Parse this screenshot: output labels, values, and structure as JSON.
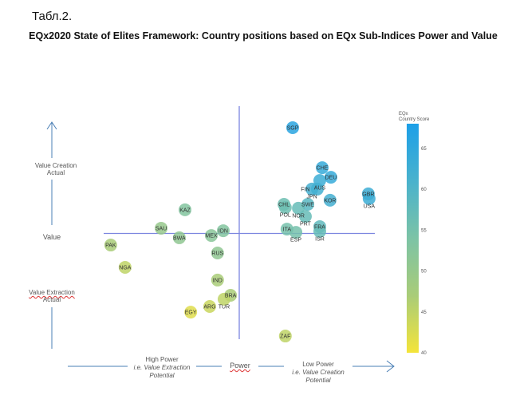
{
  "table_label": "Табл.2.",
  "chart_data": {
    "type": "scatter",
    "title": "EQx2020 State of Elites Framework: Country positions based on EQx Sub-Indices Power and Value",
    "xlabel": "Power",
    "ylabel": "Value",
    "x_left_label": [
      "High Power",
      "i.e. Value Extraction",
      "Potential"
    ],
    "x_right_label": [
      "Low Power",
      "i.e. Value Creation",
      "Potential"
    ],
    "y_top_label": [
      "Value Creation",
      "Actual"
    ],
    "y_bottom_label": [
      "Value Extraction",
      "Actual"
    ],
    "xlim": [
      0,
      100
    ],
    "ylim": [
      0,
      100
    ],
    "crosshair": {
      "x": 50,
      "y": 50
    },
    "colorbar": {
      "title": [
        "EQx",
        "Country Score"
      ],
      "range": [
        40,
        68
      ],
      "ticks": [
        40,
        45,
        50,
        55,
        60,
        65
      ],
      "colors": [
        "#f4e43a",
        "#a9cc78",
        "#7cc3a6",
        "#49b2cd",
        "#1c9fe8"
      ]
    },
    "points": [
      {
        "label": "SGP",
        "x": 69.7,
        "y": 96.5,
        "score": 66
      },
      {
        "label": "CHE",
        "x": 80.6,
        "y": 78.9,
        "score": 64
      },
      {
        "label": "DEU",
        "x": 83.8,
        "y": 74.7,
        "score": 64
      },
      {
        "label": "AUS",
        "x": 79.7,
        "y": 73.3,
        "score": 63
      },
      {
        "label": "JPN",
        "x": 76.8,
        "y": 69.5,
        "score": 62
      },
      {
        "label": "FIN",
        "x": 78.8,
        "y": 69.5,
        "score": 62
      },
      {
        "label": "GBR",
        "x": 97.6,
        "y": 67.4,
        "score": 63
      },
      {
        "label": "USA",
        "x": 97.9,
        "y": 65.3,
        "score": 63
      },
      {
        "label": "KOR",
        "x": 83.5,
        "y": 64.6,
        "score": 62
      },
      {
        "label": "CHL",
        "x": 66.5,
        "y": 62.8,
        "score": 56
      },
      {
        "label": "POL",
        "x": 67.0,
        "y": 61.4,
        "score": 56
      },
      {
        "label": "SWE",
        "x": 75.3,
        "y": 62.8,
        "score": 59
      },
      {
        "label": "NOR",
        "x": 71.8,
        "y": 61.1,
        "score": 57
      },
      {
        "label": "PRT",
        "x": 74.4,
        "y": 57.5,
        "score": 57
      },
      {
        "label": "FRA",
        "x": 79.7,
        "y": 53.0,
        "score": 58
      },
      {
        "label": "ISR",
        "x": 79.7,
        "y": 50.9,
        "score": 57
      },
      {
        "label": "ITA",
        "x": 67.6,
        "y": 51.9,
        "score": 55
      },
      {
        "label": "ESP",
        "x": 70.9,
        "y": 50.5,
        "score": 55
      },
      {
        "label": "KAZ",
        "x": 30.0,
        "y": 60.4,
        "score": 53
      },
      {
        "label": "SAU",
        "x": 21.2,
        "y": 52.3,
        "score": 50
      },
      {
        "label": "IDN",
        "x": 44.1,
        "y": 51.2,
        "score": 53
      },
      {
        "label": "MEX",
        "x": 39.7,
        "y": 49.1,
        "score": 52
      },
      {
        "label": "BWA",
        "x": 27.9,
        "y": 48.1,
        "score": 51
      },
      {
        "label": "PAK",
        "x": 2.6,
        "y": 44.9,
        "score": 47
      },
      {
        "label": "RUS",
        "x": 42.0,
        "y": 41.4,
        "score": 51
      },
      {
        "label": "NGA",
        "x": 7.9,
        "y": 35.1,
        "score": 45
      },
      {
        "label": "IND",
        "x": 42.0,
        "y": 29.5,
        "score": 47
      },
      {
        "label": "BRA",
        "x": 46.8,
        "y": 22.8,
        "score": 47
      },
      {
        "label": "TUR",
        "x": 44.4,
        "y": 21.1,
        "score": 45
      },
      {
        "label": "ARG",
        "x": 39.1,
        "y": 17.9,
        "score": 44
      },
      {
        "label": "EGY",
        "x": 32.1,
        "y": 15.4,
        "score": 42
      },
      {
        "label": "ZAF",
        "x": 67.0,
        "y": 4.9,
        "score": 45
      }
    ]
  }
}
